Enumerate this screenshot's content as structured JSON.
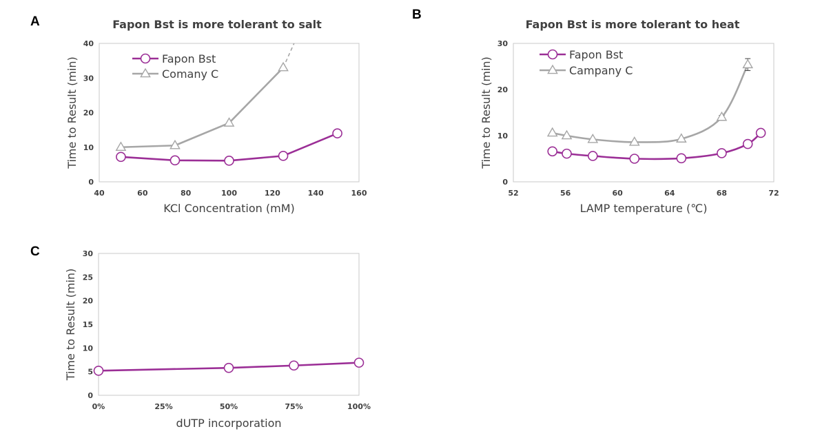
{
  "chart_data": [
    {
      "panel": "A",
      "type": "line",
      "title": "Fapon Bst is more tolerant to salt",
      "xlabel": "KCl Concentration (mM)",
      "ylabel": "Time to Result (min)",
      "xlim": [
        40,
        160
      ],
      "ylim": [
        0,
        40
      ],
      "xticks": [
        40,
        60,
        80,
        100,
        120,
        140,
        160
      ],
      "yticks": [
        0,
        10,
        20,
        30,
        40
      ],
      "xtick_labels": [
        "40",
        "60",
        "80",
        "100",
        "120",
        "140",
        "160"
      ],
      "ytick_labels": [
        "0",
        "10",
        "20",
        "30",
        "40"
      ],
      "series": [
        {
          "name": "Fapon Bst",
          "color": "#9b2e96",
          "marker": "circle",
          "x": [
            50,
            75,
            100,
            125,
            150
          ],
          "values": [
            7.2,
            6.2,
            6.1,
            7.5,
            14
          ]
        },
        {
          "name": "Comany C",
          "color": "#a6a6a6",
          "marker": "triangle",
          "x": [
            50,
            75,
            100,
            125
          ],
          "values": [
            10,
            10.5,
            17,
            33
          ],
          "dashed_extension_to": [
            130,
            40
          ]
        }
      ]
    },
    {
      "panel": "B",
      "type": "line",
      "title": "Fapon Bst is more tolerant to heat",
      "xlabel": "LAMP temperature (℃)",
      "ylabel": "Time to Result (min)",
      "xlim": [
        52,
        72
      ],
      "ylim": [
        0,
        30
      ],
      "xticks": [
        52,
        56,
        60,
        64,
        68,
        72
      ],
      "yticks": [
        0,
        10,
        20,
        30
      ],
      "xtick_labels": [
        "52",
        "56",
        "60",
        "64",
        "68",
        "72"
      ],
      "ytick_labels": [
        "0",
        "10",
        "20",
        "30"
      ],
      "series": [
        {
          "name": "Fapon Bst",
          "color": "#9b2e96",
          "marker": "circle",
          "x": [
            55,
            56.1,
            58.1,
            61.3,
            64.9,
            68,
            70,
            71
          ],
          "values": [
            6.6,
            6.1,
            5.6,
            5.0,
            5.1,
            6.2,
            8.2,
            10.6
          ]
        },
        {
          "name": "Campany C",
          "color": "#a6a6a6",
          "marker": "triangle",
          "x": [
            55,
            56.1,
            58.1,
            61.3,
            64.9,
            68,
            70
          ],
          "values": [
            10.6,
            10.0,
            9.2,
            8.6,
            9.3,
            14.0,
            25.4
          ],
          "error": [
            0,
            0,
            0,
            0,
            0,
            0.4,
            1.3
          ]
        }
      ]
    },
    {
      "panel": "C",
      "type": "line",
      "title": "",
      "xlabel": "dUTP incorporation",
      "ylabel": "Time to Result (min)",
      "xlim": [
        0,
        100
      ],
      "ylim": [
        0,
        30
      ],
      "xticks": [
        0,
        25,
        50,
        75,
        100
      ],
      "yticks": [
        0,
        5,
        10,
        15,
        20,
        25,
        30
      ],
      "xtick_labels": [
        "0%",
        "25%",
        "50%",
        "75%",
        "100%"
      ],
      "ytick_labels": [
        "0",
        "5",
        "10",
        "15",
        "20",
        "25",
        "30"
      ],
      "series": [
        {
          "name": "Fapon Bst",
          "color": "#9b2e96",
          "marker": "circle",
          "x": [
            0,
            50,
            75,
            100
          ],
          "values": [
            5.2,
            5.8,
            6.3,
            6.9
          ]
        }
      ]
    }
  ]
}
